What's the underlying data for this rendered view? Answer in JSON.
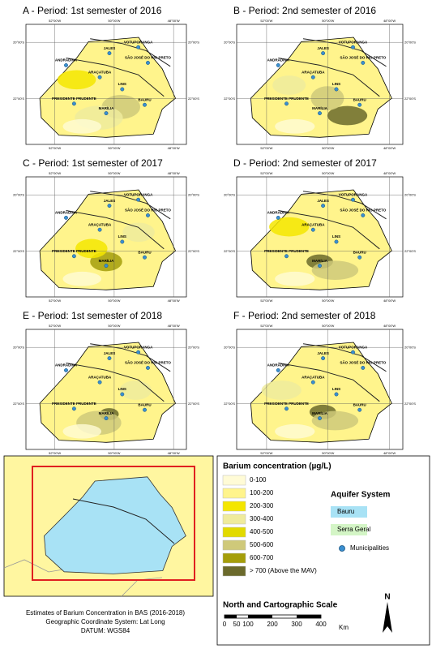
{
  "panels": [
    {
      "title": "A - Period: 1st semester of 2016"
    },
    {
      "title": "B - Period: 2nd semester of 2016"
    },
    {
      "title": "C - Period: 1st semester of 2017"
    },
    {
      "title": "D - Period: 2nd semester of 2017"
    },
    {
      "title": "E - Period: 1st semester of 2018"
    },
    {
      "title": "F - Period: 2nd semester of 2018"
    }
  ],
  "map_labels": {
    "cities": [
      "JALES",
      "VOTUPORANGA",
      "SÃO JOSÉ DO RIO PRETO",
      "ANDRADINA",
      "ARAÇATUBA",
      "LINS",
      "PRESIDENTE PRUDENTE",
      "MARÍLIA",
      "BAURU"
    ],
    "longitudes": [
      "52°00'W",
      "50°00'W",
      "48°00'W"
    ],
    "latitudes": [
      "20°00'S",
      "22°00'S"
    ]
  },
  "caption": [
    "Estimates of Barium Concentration in BAS (2016-2018)",
    "Geographic Coordinate System: Lat Long",
    "DATUM:  WGS84"
  ],
  "legend": {
    "title": "Barium concentration (µg/L)",
    "classes": [
      {
        "label": "0-100",
        "color": "#fffbd6"
      },
      {
        "label": "100-200",
        "color": "#fff48c"
      },
      {
        "label": "200-300",
        "color": "#f4e600"
      },
      {
        "label": "300-400",
        "color": "#efeb9c"
      },
      {
        "label": "400-500",
        "color": "#e2da00"
      },
      {
        "label": "500-600",
        "color": "#cfc97a"
      },
      {
        "label": "600-700",
        "color": "#a59e0a"
      },
      {
        "label": "> 700 (Above the MAV)",
        "color": "#6b6a2c"
      }
    ],
    "aquifer_title": "Aquifer System",
    "aquifer": [
      {
        "label": "Bauru",
        "color": "#a8e2f5"
      },
      {
        "label": "Serra Geral",
        "color": "#d4f5c6"
      }
    ],
    "municipalities": "Municipalities",
    "scale_title": "North and Cartographic Scale",
    "scale_labels": [
      "0",
      "50",
      "100",
      "200",
      "300",
      "400"
    ],
    "unit": "Km",
    "north": "N"
  }
}
